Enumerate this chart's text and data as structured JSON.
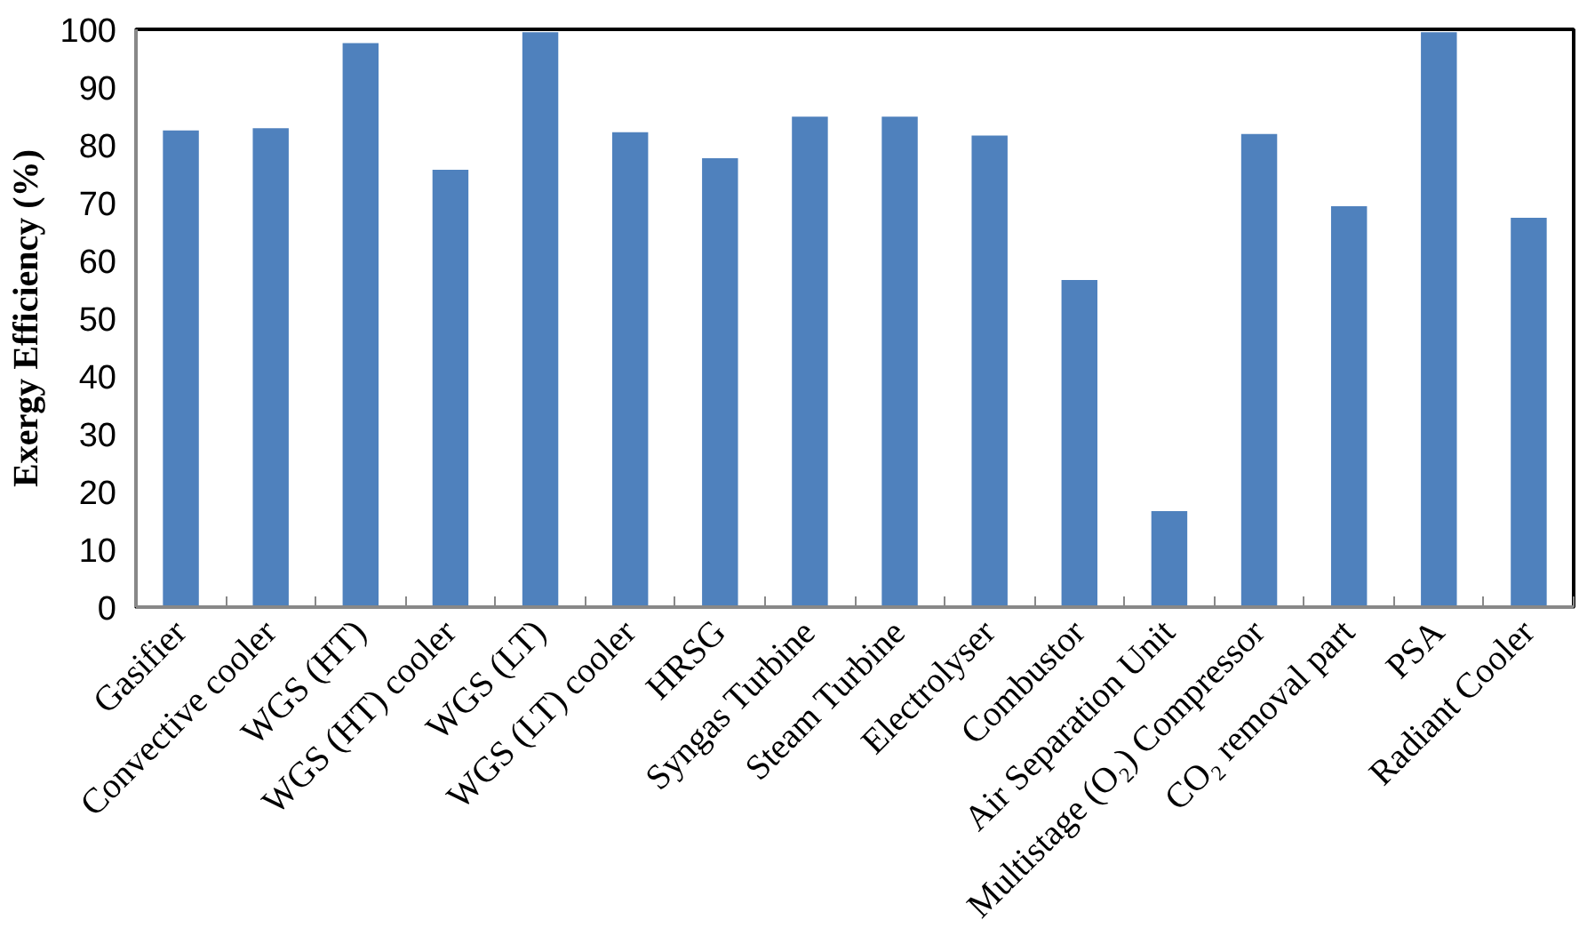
{
  "chart_data": {
    "type": "bar",
    "ylabel": "Exergy Efficiency (%)",
    "categories": [
      "Gasifier",
      "Convective cooler",
      "WGS (HT)",
      "WGS (HT) cooler",
      "WGS (LT)",
      "WGS (LT) cooler",
      "HRSG",
      "Syngas Turbine",
      "Steam Turbine",
      "Electrolyser",
      "Combustor",
      "Air Separation Unit",
      "Multistage (O₂) Compressor",
      "CO₂ removal part",
      "PSA",
      "Radiant Cooler"
    ],
    "values": [
      82.5,
      82.9,
      97.6,
      75.7,
      99.5,
      82.2,
      77.7,
      84.9,
      84.9,
      81.6,
      56.6,
      16.6,
      81.9,
      69.4,
      99.5,
      67.4
    ],
    "color": "#4f81bd",
    "ylim": [
      0,
      100
    ],
    "yticks": [
      0,
      10,
      20,
      30,
      40,
      50,
      60,
      70,
      80,
      90,
      100
    ],
    "grid": false
  }
}
